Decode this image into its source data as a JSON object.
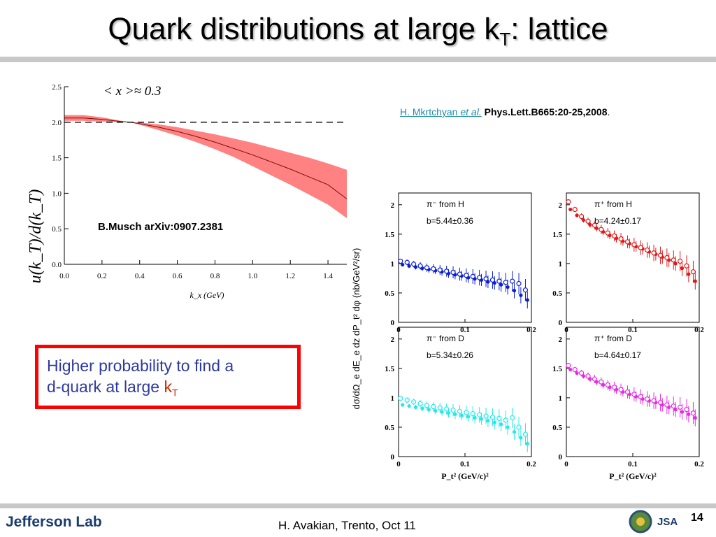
{
  "slide": {
    "title_main": "Quark distributions at large k",
    "title_sub": "T",
    "title_tail": ":  lattice",
    "citation_author": "H. Mkrtchyan",
    "citation_etal": "et al.",
    "citation_journal": "Phys.Lett.B665:20-25,2008",
    "citation_end": ".",
    "musch_label": "B.Musch arXiv:0907.2381",
    "highlight_line1": "Higher probability to find a",
    "highlight_line2": "d-quark at large ",
    "highlight_k": "k",
    "highlight_sub": "T",
    "footer": "H. Avakian, Trento, Oct 11",
    "page_number": "14",
    "logo": "Jefferson Lab",
    "logo_jsa": "JSA"
  },
  "colors": {
    "band": "#ff6b6b",
    "panel_pim_H": "#0a1ed2",
    "panel_pip_H": "#e01818",
    "panel_pim_D": "#22eaea",
    "panel_pip_D": "#e62ae6",
    "box": "#ff0000",
    "text_blue": "#2d3a9e",
    "kt_red": "#cc2a00"
  },
  "chart_data": [
    {
      "type": "area",
      "annotation": "< x >≈ 0.3",
      "ylabel": "u(k_T)/d(k_T)",
      "xlabel": "k_x  (GeV)",
      "xticks": [
        "0.0",
        "0.2",
        "0.4",
        "0.6",
        "0.8",
        "1.0",
        "1.2",
        "1.4"
      ],
      "yticks": [
        "0.0",
        "0.5",
        "1.0",
        "1.5",
        "2.0",
        "2.5"
      ],
      "xlim": [
        0,
        1.5
      ],
      "ylim": [
        0,
        2.5
      ],
      "reference_line": 2.0,
      "x": [
        0.0,
        0.1,
        0.2,
        0.3,
        0.35,
        0.4,
        0.5,
        0.6,
        0.7,
        0.8,
        0.9,
        1.0,
        1.1,
        1.2,
        1.3,
        1.4,
        1.5
      ],
      "central": [
        2.06,
        2.06,
        2.04,
        2.01,
        2.0,
        1.98,
        1.93,
        1.87,
        1.8,
        1.72,
        1.63,
        1.54,
        1.44,
        1.34,
        1.23,
        1.12,
        0.92
      ],
      "upper": [
        2.1,
        2.1,
        2.07,
        2.02,
        2.0,
        1.995,
        1.97,
        1.93,
        1.88,
        1.83,
        1.77,
        1.71,
        1.64,
        1.57,
        1.5,
        1.42,
        1.33
      ],
      "lower": [
        2.02,
        2.02,
        2.01,
        2.0,
        2.0,
        1.965,
        1.89,
        1.81,
        1.72,
        1.62,
        1.51,
        1.38,
        1.25,
        1.12,
        0.98,
        0.84,
        0.65
      ]
    },
    {
      "type": "scatter",
      "shared_ylabel": "dσ/dΩ_e dE_e dz dP_t² dφ  (nb/GeV²/sr)",
      "shared_xlabel": "P_t² (GeV/c)²",
      "xticks": [
        "0",
        "0.1",
        "0.2"
      ],
      "yticks": [
        "0",
        "0.5",
        "1",
        "1.5",
        "2"
      ],
      "xlim": [
        0,
        0.2
      ],
      "ylim": [
        0,
        2.2
      ],
      "panels": [
        {
          "label": "π⁻ from H",
          "b": "b=5.44±0.36",
          "color": "#0a1ed2",
          "filled": [
            0.98,
            0.96,
            0.94,
            0.92,
            0.9,
            0.88,
            0.86,
            0.83,
            0.81,
            0.79,
            0.76,
            0.74,
            0.72,
            0.69,
            0.67,
            0.64,
            0.6,
            0.54,
            0.46,
            0.38
          ],
          "open": [
            1.04,
            1.02,
            0.99,
            0.96,
            0.93,
            0.91,
            0.89,
            0.87,
            0.85,
            0.82,
            0.8,
            0.78,
            0.76,
            0.74,
            0.72,
            0.7,
            0.68,
            0.7,
            0.66,
            0.55
          ]
        },
        {
          "label": "π⁺ from H",
          "b": "b=4.24±0.17",
          "color": "#e01818",
          "filled": [
            1.92,
            1.82,
            1.74,
            1.66,
            1.6,
            1.54,
            1.48,
            1.43,
            1.38,
            1.34,
            1.29,
            1.25,
            1.2,
            1.16,
            1.11,
            1.06,
            1.0,
            0.92,
            0.82,
            0.7
          ],
          "open": [
            2.05,
            1.92,
            1.8,
            1.72,
            1.65,
            1.58,
            1.52,
            1.47,
            1.42,
            1.37,
            1.32,
            1.27,
            1.23,
            1.18,
            1.14,
            1.1,
            1.06,
            1.04,
            0.96,
            0.86
          ]
        },
        {
          "label": "π⁻ from D",
          "b": "b=5.34±0.26",
          "color": "#22eaea",
          "filled": [
            0.88,
            0.86,
            0.84,
            0.82,
            0.8,
            0.78,
            0.76,
            0.74,
            0.72,
            0.7,
            0.68,
            0.66,
            0.64,
            0.61,
            0.58,
            0.55,
            0.5,
            0.42,
            0.32,
            0.22
          ],
          "open": [
            0.99,
            0.96,
            0.93,
            0.9,
            0.87,
            0.85,
            0.83,
            0.81,
            0.79,
            0.77,
            0.75,
            0.73,
            0.71,
            0.69,
            0.67,
            0.65,
            0.62,
            0.66,
            0.5,
            0.38
          ]
        },
        {
          "label": "π⁺ from D",
          "b": "b=4.64±0.17",
          "color": "#e62ae6",
          "filled": [
            1.48,
            1.42,
            1.37,
            1.32,
            1.27,
            1.22,
            1.18,
            1.14,
            1.1,
            1.06,
            1.02,
            0.98,
            0.95,
            0.92,
            0.88,
            0.84,
            0.8,
            0.76,
            0.72,
            0.66
          ],
          "open": [
            1.55,
            1.48,
            1.42,
            1.37,
            1.32,
            1.27,
            1.22,
            1.18,
            1.14,
            1.1,
            1.06,
            1.02,
            0.98,
            0.95,
            0.92,
            0.88,
            0.86,
            0.84,
            0.8,
            0.74
          ]
        }
      ]
    }
  ]
}
